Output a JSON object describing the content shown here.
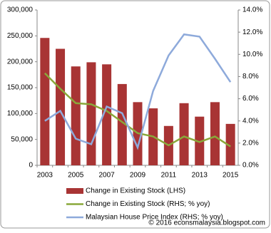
{
  "chart_data": {
    "type": "bar_line",
    "categories": [
      "2003",
      null,
      "2005",
      null,
      "2007",
      null,
      "2009",
      null,
      "2011",
      null,
      "2013",
      null,
      "2015"
    ],
    "series": [
      {
        "name": "Change in Existing Stock (LHS)",
        "type": "bar",
        "color": "#a83434",
        "values": [
          246000,
          225000,
          191000,
          199000,
          195000,
          157000,
          122000,
          110000,
          76000,
          120000,
          94000,
          122000,
          80000
        ]
      },
      {
        "name": "Change in Existing Stock (RHS; % yoy)",
        "type": "line",
        "axis": "y2",
        "color": "#8aa83a",
        "values": [
          8.3,
          6.9,
          5.6,
          5.5,
          4.9,
          3.9,
          2.9,
          2.6,
          1.8,
          2.6,
          2.1,
          2.6,
          1.7
        ]
      },
      {
        "name": "Malaysian House Price Index (RHS; % yoy)",
        "type": "line",
        "axis": "y2",
        "color": "#8eaadb",
        "values": [
          4.0,
          4.9,
          2.4,
          1.9,
          5.3,
          4.7,
          1.6,
          6.7,
          9.9,
          11.8,
          11.6,
          9.6,
          7.5
        ]
      }
    ],
    "ylim": [
      0,
      300000
    ],
    "yticks": [
      0,
      {
        "value": 50000,
        "label": "50,000"
      },
      {
        "value": 100000,
        "label": "100,000"
      },
      {
        "value": 150000,
        "label": "150,000"
      },
      {
        "value": 200000,
        "label": "200,000"
      },
      {
        "value": 250000,
        "label": "250,000"
      },
      {
        "value": 300000,
        "label": "300,000"
      }
    ],
    "y2lim": [
      0,
      14
    ],
    "y2ticks": [
      {
        "value": 0,
        "label": "0.0%"
      },
      {
        "value": 2,
        "label": "2.0%"
      },
      {
        "value": 4,
        "label": "4.0%"
      },
      {
        "value": 6,
        "label": "6.0%"
      },
      {
        "value": 8,
        "label": "8.0%"
      },
      {
        "value": 10,
        "label": "10.0%"
      },
      {
        "value": 12,
        "label": "12.0%"
      },
      {
        "value": 14,
        "label": "14.0%"
      }
    ],
    "grid": false,
    "legend": "bottom",
    "watermark": "© 2016 econsmalaysia.blogspot.com"
  }
}
